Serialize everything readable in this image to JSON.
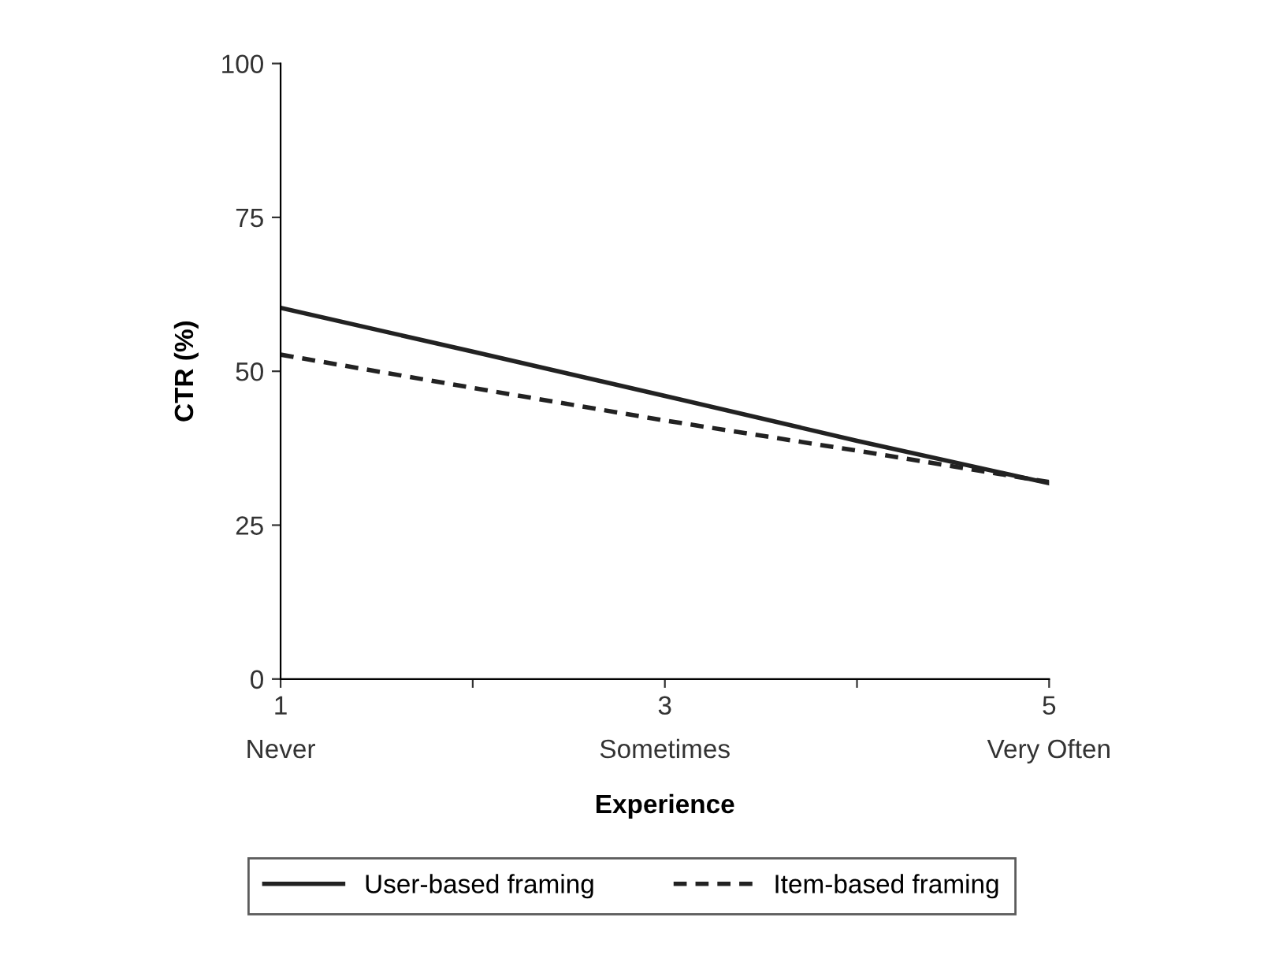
{
  "chart_data": {
    "type": "line",
    "xlabel": "Experience",
    "ylabel": "CTR (%)",
    "x": [
      1,
      2,
      3,
      4,
      5
    ],
    "xlim": [
      1,
      5
    ],
    "xticks": [
      {
        "value": 1,
        "label": "1\nNever"
      },
      {
        "value": 2,
        "label": null
      },
      {
        "value": 3,
        "label": "3\nSometimes"
      },
      {
        "value": 4,
        "label": null
      },
      {
        "value": 5,
        "label": "5\nVery Often"
      }
    ],
    "ylim": [
      0,
      100
    ],
    "yticks": [
      0,
      25,
      50,
      75,
      100
    ],
    "grid": false,
    "legend": "bottom",
    "marker": "none",
    "series": [
      {
        "name": "User-based framing",
        "color": "#222222",
        "line_style": "solid",
        "values": [
          60.3,
          53.2,
          46.0,
          38.7,
          31.8
        ]
      },
      {
        "name": "Item-based framing",
        "color": "#222222",
        "line_style": "dashed",
        "values": [
          52.7,
          47.3,
          42.0,
          37.1,
          32.0
        ]
      }
    ]
  }
}
